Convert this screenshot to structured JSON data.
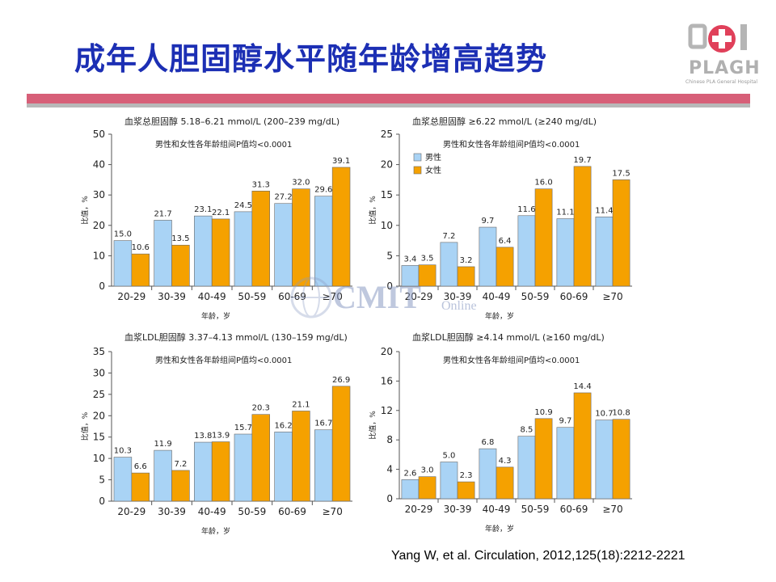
{
  "page": {
    "title": "成年人胆固醇水平随年龄增高趋势",
    "citation": "Yang W, et al. Circulation, 2012,125(18):2212-2221",
    "logo_text": "PLAGH",
    "logo_sub": "Chinese PLA General Hospital",
    "watermark": "CMIT",
    "watermark_sub": "Online"
  },
  "colors": {
    "male": "#a9d3f5",
    "female": "#f5a100",
    "title": "#1c2fb4",
    "accent_bar": "#d75f78"
  },
  "chart_data": [
    {
      "type": "bar",
      "title": "血浆总胆固醇  5.18–6.21 mmol/L (200–239 mg/dL)",
      "subtitle": "男性和女性各年龄组间P值均<0.0001",
      "xlabel": "年龄，岁",
      "ylabel": "比值，%",
      "ylim": [
        0,
        50
      ],
      "yticks": [
        0,
        10,
        20,
        30,
        40,
        50
      ],
      "categories": [
        "20-29",
        "30-39",
        "40-49",
        "50-59",
        "60-69",
        "≥70"
      ],
      "series": [
        {
          "values": [
            15.0,
            21.7,
            23.1,
            24.5,
            27.2,
            29.6
          ],
          "labels": [
            "15.0",
            "21.7",
            "23.1",
            "24.5",
            "27.2",
            "29.6"
          ]
        },
        {
          "values": [
            10.6,
            13.5,
            22.1,
            31.3,
            32.0,
            39.1
          ],
          "labels": [
            "10.6",
            "13.5",
            "22.1",
            "31.3",
            "32.0",
            "39.1"
          ]
        }
      ],
      "legend": []
    },
    {
      "type": "bar",
      "title": "血浆总胆固醇  ≥6.22  mmol/L (≥240 mg/dL)",
      "subtitle": "男性和女性各年龄组间P值均<0.0001",
      "xlabel": "年龄，岁",
      "ylabel": "比值，%",
      "ylim": [
        0,
        25
      ],
      "yticks": [
        0,
        5,
        10,
        15,
        20,
        25
      ],
      "categories": [
        "20-29",
        "30-39",
        "40-49",
        "50-59",
        "60-69",
        "≥70"
      ],
      "series": [
        {
          "name": "男性",
          "values": [
            3.4,
            7.2,
            9.7,
            11.6,
            11.1,
            11.4
          ],
          "labels": [
            "3.4",
            "7.2",
            "9.7",
            "11.6",
            "11.1",
            "11.4"
          ]
        },
        {
          "name": "女性",
          "values": [
            3.5,
            3.2,
            6.4,
            16.0,
            19.7,
            17.5
          ],
          "labels": [
            "3.5",
            "3.2",
            "6.4",
            "16.0",
            "19.7",
            "17.5"
          ]
        }
      ],
      "legend": [
        "男性",
        "女性"
      ]
    },
    {
      "type": "bar",
      "title": "血浆LDL胆固醇  3.37–4.13 mmol/L (130–159 mg/dL)",
      "subtitle": "男性和女性各年龄组间P值均<0.0001",
      "xlabel": "年龄，岁",
      "ylabel": "比值，%",
      "ylim": [
        0,
        35
      ],
      "yticks": [
        0,
        5,
        10,
        15,
        20,
        25,
        30,
        35
      ],
      "categories": [
        "20-29",
        "30-39",
        "40-49",
        "50-59",
        "60-69",
        "≥70"
      ],
      "series": [
        {
          "values": [
            10.3,
            11.9,
            13.8,
            15.7,
            16.2,
            16.7
          ],
          "labels": [
            "10.3",
            "11.9",
            "13.8",
            "15.7",
            "16.2",
            "16.7"
          ]
        },
        {
          "values": [
            6.6,
            7.2,
            13.9,
            20.3,
            21.1,
            26.9
          ],
          "labels": [
            "6.6",
            "7.2",
            "13.9",
            "20.3",
            "21.1",
            "26.9"
          ]
        }
      ],
      "legend": []
    },
    {
      "type": "bar",
      "title": "血浆LDL胆固醇  ≥4.14 mmol/L (≥160 mg/dL)",
      "subtitle": "男性和女性各年龄组间P值均<0.0001",
      "xlabel": "年龄，岁",
      "ylabel": "比值，%",
      "ylim": [
        0,
        20
      ],
      "yticks": [
        0,
        4,
        8,
        12,
        16,
        20
      ],
      "categories": [
        "20-29",
        "30-39",
        "40-49",
        "50-59",
        "60-69",
        "≥70"
      ],
      "series": [
        {
          "values": [
            2.6,
            5.0,
            6.8,
            8.5,
            9.7,
            10.7
          ],
          "labels": [
            "2.6",
            "5.0",
            "6.8",
            "8.5",
            "9.7",
            "10.7"
          ]
        },
        {
          "values": [
            3.0,
            2.3,
            4.3,
            10.9,
            14.4,
            10.8
          ],
          "labels": [
            "3.0",
            "2.3",
            "4.3",
            "10.9",
            "14.4",
            "10.8"
          ]
        }
      ],
      "legend": []
    }
  ]
}
